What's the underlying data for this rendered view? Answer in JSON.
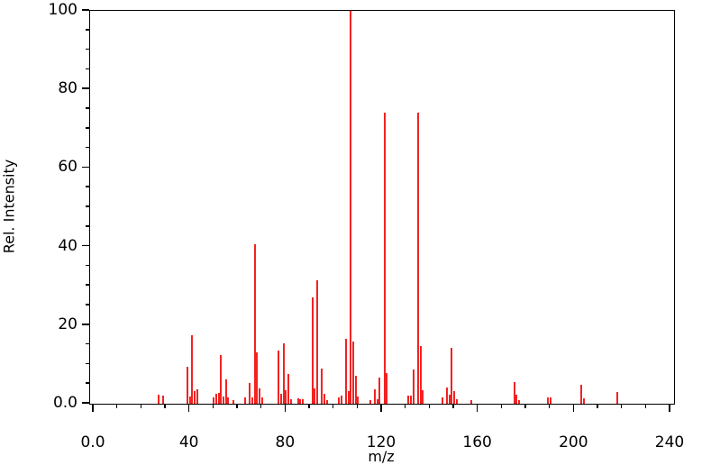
{
  "figure": {
    "background_color": "#ffffff",
    "axis_color": "#000000"
  },
  "chart_data": {
    "type": "bar",
    "subtype": "mass-spectrum-stem-plot",
    "title": "",
    "xlabel": "m/z",
    "ylabel": "Rel. Intensity",
    "xlim": [
      -1.5,
      241.5
    ],
    "ylim": [
      0,
      100
    ],
    "grid": false,
    "legend": "none",
    "bar_color": "#f32222",
    "x_major_ticks": [
      {
        "value": 0,
        "label": "0.0"
      },
      {
        "value": 40,
        "label": "40"
      },
      {
        "value": 80,
        "label": "80"
      },
      {
        "value": 120,
        "label": "120"
      },
      {
        "value": 160,
        "label": "160"
      },
      {
        "value": 200,
        "label": "200"
      },
      {
        "value": 240,
        "label": "240"
      }
    ],
    "x_minor_tick_step": 10,
    "y_major_ticks": [
      {
        "value": 0,
        "label": "0.0"
      },
      {
        "value": 20,
        "label": "20"
      },
      {
        "value": 40,
        "label": "40"
      },
      {
        "value": 60,
        "label": "60"
      },
      {
        "value": 80,
        "label": "80"
      },
      {
        "value": 100,
        "label": "100"
      }
    ],
    "y_minor_tick_step": 5,
    "peaks_format": [
      "mz",
      "relative_intensity"
    ],
    "peaks": [
      [
        27,
        2.2
      ],
      [
        29,
        2.0
      ],
      [
        39,
        9.3
      ],
      [
        40,
        1.8
      ],
      [
        41,
        17.5
      ],
      [
        42,
        3.3
      ],
      [
        43,
        3.7
      ],
      [
        50,
        1.5
      ],
      [
        51,
        2.5
      ],
      [
        52,
        2.8
      ],
      [
        53,
        12.5
      ],
      [
        54,
        1.8
      ],
      [
        55,
        6.3
      ],
      [
        56,
        1.5
      ],
      [
        58,
        1.0
      ],
      [
        63,
        1.5
      ],
      [
        65,
        5.3
      ],
      [
        66,
        1.5
      ],
      [
        67,
        40.5
      ],
      [
        68,
        13.0
      ],
      [
        69,
        4.0
      ],
      [
        70,
        1.5
      ],
      [
        77,
        13.5
      ],
      [
        78,
        2.6
      ],
      [
        79,
        15.3
      ],
      [
        80,
        3.5
      ],
      [
        81,
        7.5
      ],
      [
        82,
        1.2
      ],
      [
        85,
        1.3
      ],
      [
        86,
        1.2
      ],
      [
        87,
        1.2
      ],
      [
        91,
        27.0
      ],
      [
        92,
        4.0
      ],
      [
        93,
        31.5
      ],
      [
        95,
        9.0
      ],
      [
        96,
        2.5
      ],
      [
        97,
        1.0
      ],
      [
        102,
        1.5
      ],
      [
        103,
        2.1
      ],
      [
        105,
        16.5
      ],
      [
        106,
        3.3
      ],
      [
        107,
        100.0
      ],
      [
        108,
        15.8
      ],
      [
        109,
        7.0
      ],
      [
        110,
        1.8
      ],
      [
        115,
        1.0
      ],
      [
        117,
        3.7
      ],
      [
        118,
        1.1
      ],
      [
        119,
        6.6
      ],
      [
        121,
        74.0
      ],
      [
        122,
        7.7
      ],
      [
        131,
        2.0
      ],
      [
        132,
        2.0
      ],
      [
        133,
        8.7
      ],
      [
        135,
        74.0
      ],
      [
        136,
        14.6
      ],
      [
        137,
        3.5
      ],
      [
        145,
        1.7
      ],
      [
        147,
        4.2
      ],
      [
        148,
        2.2
      ],
      [
        149,
        14.3
      ],
      [
        150,
        3.2
      ],
      [
        151,
        1.2
      ],
      [
        157,
        1.0
      ],
      [
        175,
        5.6
      ],
      [
        176,
        2.3
      ],
      [
        177,
        1.0
      ],
      [
        189,
        1.5
      ],
      [
        190,
        1.7
      ],
      [
        203,
        4.8
      ],
      [
        204,
        1.4
      ],
      [
        218,
        3.0
      ]
    ]
  }
}
